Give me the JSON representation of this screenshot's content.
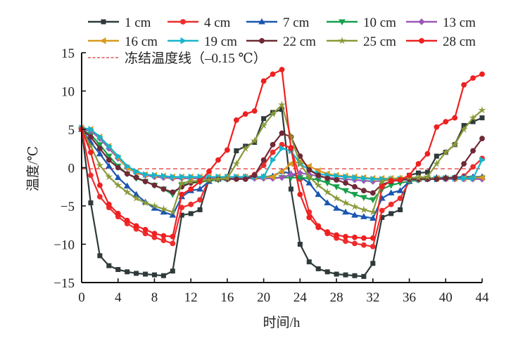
{
  "chart_data": {
    "type": "line",
    "title": "",
    "xlabel": "时间/h",
    "ylabel": "温度/℃",
    "xlim": [
      0,
      44
    ],
    "ylim": [
      -15,
      15
    ],
    "x_ticks": [
      0,
      4,
      8,
      12,
      16,
      20,
      24,
      28,
      32,
      36,
      40,
      44
    ],
    "y_ticks": [
      -15,
      -10,
      -5,
      0,
      5,
      10,
      15
    ],
    "grid": false,
    "legend_placement": "top",
    "x": [
      0,
      1,
      2,
      3,
      4,
      5,
      6,
      7,
      8,
      9,
      10,
      11,
      12,
      13,
      14,
      15,
      16,
      17,
      18,
      19,
      20,
      21,
      22,
      23,
      24,
      25,
      26,
      27,
      28,
      29,
      30,
      31,
      32,
      33,
      34,
      35,
      36,
      37,
      38,
      39,
      40,
      41,
      42,
      43,
      44
    ],
    "series": [
      {
        "name": "1 cm",
        "color": "#2f3a3a",
        "marker": "square",
        "values": [
          5,
          -4.6,
          -11.5,
          -12.8,
          -13.3,
          -13.6,
          -13.8,
          -13.9,
          -14.0,
          -14.1,
          -13.5,
          -6.2,
          -6.0,
          -5.5,
          -1.5,
          -1.3,
          -1.2,
          2.2,
          2.8,
          3.3,
          6.4,
          7.2,
          7.6,
          -2.8,
          -10,
          -12.3,
          -13.2,
          -13.6,
          -13.9,
          -14.0,
          -14.1,
          -14.2,
          -12.5,
          -6.5,
          -6.0,
          -5.5,
          -1.0,
          -0.7,
          -0.6,
          1.5,
          2.0,
          3.0,
          5.5,
          6.0,
          6.5
        ]
      },
      {
        "name": "4 cm",
        "color": "#ee2c2c",
        "marker": "circle",
        "values": [
          5,
          -1,
          -3.8,
          -5.2,
          -6.4,
          -7.3,
          -8.0,
          -8.6,
          -9.1,
          -9.5,
          -9.9,
          -5.2,
          -4.8,
          -4.2,
          -1.5,
          -1.4,
          -1.4,
          -1.3,
          -1.3,
          -0.9,
          0.3,
          2.0,
          3.0,
          2.6,
          -1.5,
          -5.8,
          -7.6,
          -8.6,
          -9.2,
          -9.6,
          -9.9,
          -10.1,
          -10.3,
          -5.6,
          -4.8,
          -4.0,
          -1.8,
          -1.6,
          -1.5,
          -1.5,
          -1.4,
          -1.4,
          -1.1,
          0.1,
          1.2
        ]
      },
      {
        "name": "7 cm",
        "color": "#1a56b0",
        "marker": "triangle-up",
        "values": [
          5,
          3.3,
          1.8,
          0.2,
          -1.3,
          -2.4,
          -3.5,
          -4.5,
          -5.3,
          -5.8,
          -6.2,
          -3.8,
          -3.0,
          -2.8,
          -1.8,
          -1.5,
          -1.4,
          -1.3,
          -1.2,
          -1.2,
          -1.2,
          -1.1,
          -0.5,
          -0.8,
          -1.2,
          -2.0,
          -3.5,
          -4.6,
          -5.3,
          -5.8,
          -6.2,
          -6.4,
          -6.6,
          -4.0,
          -3.3,
          -3.0,
          -1.8,
          -1.5,
          -1.4,
          -1.3,
          -1.3,
          -1.3,
          -1.2,
          -1.2,
          -1.2
        ]
      },
      {
        "name": "10 cm",
        "color": "#16a04a",
        "marker": "triangle-down",
        "values": [
          5,
          4.3,
          3.0,
          1.5,
          0.2,
          -0.8,
          -1.4,
          -1.8,
          -2.3,
          -2.8,
          -3.5,
          -2.3,
          -2.0,
          -1.9,
          -1.7,
          -1.6,
          -1.5,
          -1.4,
          -1.4,
          -1.4,
          -1.4,
          -1.3,
          -1.3,
          -1.3,
          -1.3,
          -1.4,
          -1.6,
          -2.0,
          -2.5,
          -3.0,
          -3.5,
          -3.9,
          -4.2,
          -2.8,
          -2.3,
          -2.0,
          -1.8,
          -1.6,
          -1.5,
          -1.4,
          -1.4,
          -1.4,
          -1.4,
          -1.4,
          -1.4
        ]
      },
      {
        "name": "13 cm",
        "color": "#9b59b6",
        "marker": "diamond",
        "values": [
          5,
          4.8,
          3.8,
          2.5,
          1.2,
          0,
          -0.7,
          -1.0,
          -1.2,
          -1.3,
          -1.4,
          -1.4,
          -1.4,
          -1.4,
          -1.4,
          -1.4,
          -1.4,
          -1.4,
          -1.4,
          -1.4,
          -1.4,
          -1.4,
          -1.3,
          -0.9,
          -0.7,
          -0.9,
          -1.1,
          -1.3,
          -1.4,
          -1.5,
          -1.6,
          -1.7,
          -1.8,
          -1.7,
          -1.6,
          -1.6,
          -1.6,
          -1.5,
          -1.5,
          -1.5,
          -1.5,
          -1.5,
          -1.5,
          -1.5,
          -1.5
        ]
      },
      {
        "name": "16 cm",
        "color": "#d99a1f",
        "marker": "triangle-left",
        "values": [
          5.2,
          5.0,
          4.0,
          2.8,
          1.3,
          0,
          -0.6,
          -0.9,
          -1.0,
          -1.1,
          -1.2,
          -1.2,
          -1.2,
          -1.2,
          -1.2,
          -1.2,
          -1.2,
          -1.2,
          -1.2,
          -1.2,
          -1.2,
          -1.2,
          -0.5,
          0.5,
          0.8,
          0.2,
          -0.4,
          -0.8,
          -1.0,
          -1.1,
          -1.2,
          -1.3,
          -1.4,
          -1.4,
          -1.4,
          -1.4,
          -1.4,
          -1.4,
          -1.4,
          -1.4,
          -1.4,
          -1.4,
          -1.4,
          -1.3,
          -1.3
        ]
      },
      {
        "name": "19 cm",
        "color": "#17b5cc",
        "marker": "triangle-right",
        "values": [
          5.2,
          5.0,
          4.0,
          2.8,
          1.5,
          0.2,
          -0.5,
          -0.9,
          -1.0,
          -1.1,
          -1.2,
          -1.2,
          -1.2,
          -1.2,
          -1.2,
          -1.2,
          -1.2,
          -1.2,
          -1.2,
          -1.2,
          -1.2,
          1.0,
          2.5,
          2.2,
          0.5,
          -0.3,
          -0.8,
          -1.0,
          -1.1,
          -1.2,
          -1.3,
          -1.4,
          -1.5,
          -1.5,
          -1.5,
          -1.5,
          -1.5,
          -1.5,
          -1.5,
          -1.5,
          -1.4,
          -1.4,
          -1.4,
          -1.4,
          1.0
        ]
      },
      {
        "name": "22 cm",
        "color": "#6e2a36",
        "marker": "circle",
        "values": [
          5,
          4.0,
          2.5,
          1.0,
          0,
          -0.8,
          -1.3,
          -1.8,
          -2.3,
          -2.8,
          -3.2,
          -2.5,
          -2.0,
          -1.7,
          -1.6,
          -1.5,
          -1.5,
          -1.5,
          -1.5,
          -1.0,
          1.0,
          3.0,
          4.5,
          4.0,
          1.5,
          -0.3,
          -1.0,
          -1.4,
          -1.6,
          -2.0,
          -2.5,
          -3.0,
          -3.3,
          -2.2,
          -1.8,
          -1.6,
          -1.5,
          -1.5,
          -1.5,
          -1.5,
          -1.4,
          -1.3,
          0.5,
          2.2,
          3.8
        ]
      },
      {
        "name": "25 cm",
        "color": "#8a9a3a",
        "marker": "star",
        "values": [
          5,
          2.8,
          0.3,
          -1.2,
          -2.3,
          -3.2,
          -4.0,
          -4.6,
          -5.0,
          -5.4,
          -5.8,
          -2.0,
          -1.8,
          -1.7,
          -1.6,
          -1.5,
          -1.4,
          0.5,
          2.5,
          3.5,
          5.5,
          7.0,
          8.2,
          4.0,
          0.5,
          -1.2,
          -2.3,
          -3.2,
          -4.0,
          -4.6,
          -5.1,
          -5.5,
          -5.8,
          -1.8,
          -1.5,
          -1.4,
          -1.3,
          -1.3,
          -1.2,
          0.5,
          2.0,
          3.0,
          5.0,
          6.5,
          7.5
        ]
      },
      {
        "name": "28 cm",
        "color": "#ee2020",
        "marker": "circle",
        "values": [
          5,
          2,
          -2.3,
          -4.8,
          -6.0,
          -6.9,
          -7.6,
          -8.1,
          -8.6,
          -8.9,
          -9.0,
          -3.5,
          -2.8,
          -1.8,
          -0.5,
          1.0,
          2.3,
          6.2,
          7.0,
          7.4,
          11.3,
          12.2,
          12.8,
          2.5,
          -3.5,
          -6.5,
          -7.8,
          -8.4,
          -8.8,
          -9.0,
          -9.1,
          -9.2,
          -9.2,
          -2.5,
          -1.7,
          -1.6,
          -1.0,
          0.5,
          1.8,
          5.3,
          6.0,
          6.5,
          10.8,
          11.7,
          12.2
        ]
      }
    ],
    "reference_line": {
      "name": "冻结温度线（–0.15 ℃）",
      "value": -0.15,
      "color": "#e03030",
      "style": "dashed"
    }
  }
}
